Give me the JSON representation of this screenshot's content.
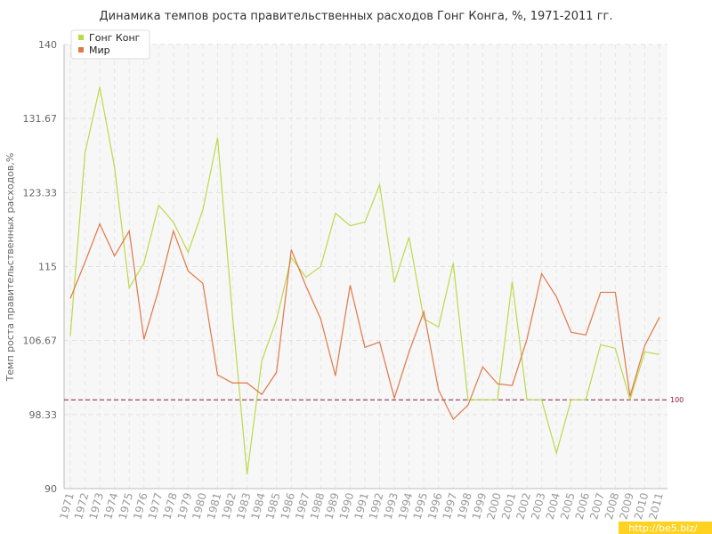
{
  "chart_data": {
    "type": "line",
    "title": "Динамика темпов роста правительственных расходов Гонг Конга, %, 1971-2011 гг.",
    "y_label": "Темп роста правительственных расходов,%",
    "categories": [
      "1971",
      "1972",
      "1973",
      "1974",
      "1975",
      "1976",
      "1977",
      "1978",
      "1979",
      "1980",
      "1981",
      "1982",
      "1983",
      "1984",
      "1985",
      "1986",
      "1987",
      "1988",
      "1989",
      "1990",
      "1991",
      "1992",
      "1993",
      "1994",
      "1995",
      "1996",
      "1997",
      "1998",
      "1999",
      "2000",
      "2001",
      "2002",
      "2003",
      "2004",
      "2005",
      "2006",
      "2007",
      "2008",
      "2009",
      "2010",
      "2011"
    ],
    "series": [
      {
        "name": "Гонг Конг",
        "color": "#bcd94a",
        "values": [
          107.2,
          127.8,
          135.2,
          126.2,
          112.6,
          115.4,
          121.9,
          120.0,
          116.6,
          121.4,
          129.5,
          109.7,
          91.6,
          104.4,
          109.0,
          116.0,
          113.8,
          115.0,
          121.0,
          119.6,
          120.0,
          124.2,
          113.2,
          118.3,
          109.1,
          108.2,
          115.4,
          100,
          100,
          100,
          113.3,
          100,
          100,
          94.0,
          100,
          100,
          106.2,
          105.8,
          100,
          105.4,
          105.1
        ]
      },
      {
        "name": "Мир",
        "color": "#e07848",
        "values": [
          111.4,
          115.5,
          119.8,
          116.2,
          119.0,
          106.8,
          112.4,
          119.0,
          114.5,
          113.1,
          102.8,
          101.9,
          101.9,
          100.6,
          103.1,
          116.9,
          112.8,
          109.1,
          102.7,
          112.9,
          105.9,
          106.5,
          100.2,
          105.4,
          109.9,
          101.1,
          97.8,
          99.4,
          103.7,
          101.8,
          101.6,
          106.8,
          114.2,
          111.6,
          107.6,
          107.3,
          112.1,
          112.1,
          100.4,
          106.1,
          109.3
        ]
      }
    ],
    "ylim": [
      90,
      140
    ],
    "yticks": [
      90,
      98.33,
      106.67,
      115,
      123.33,
      131.67,
      140
    ],
    "reference_line": 100,
    "reference_color": "#8b1a3a",
    "grid": true,
    "legend": "top-left",
    "watermark": "http://be5.biz/"
  }
}
